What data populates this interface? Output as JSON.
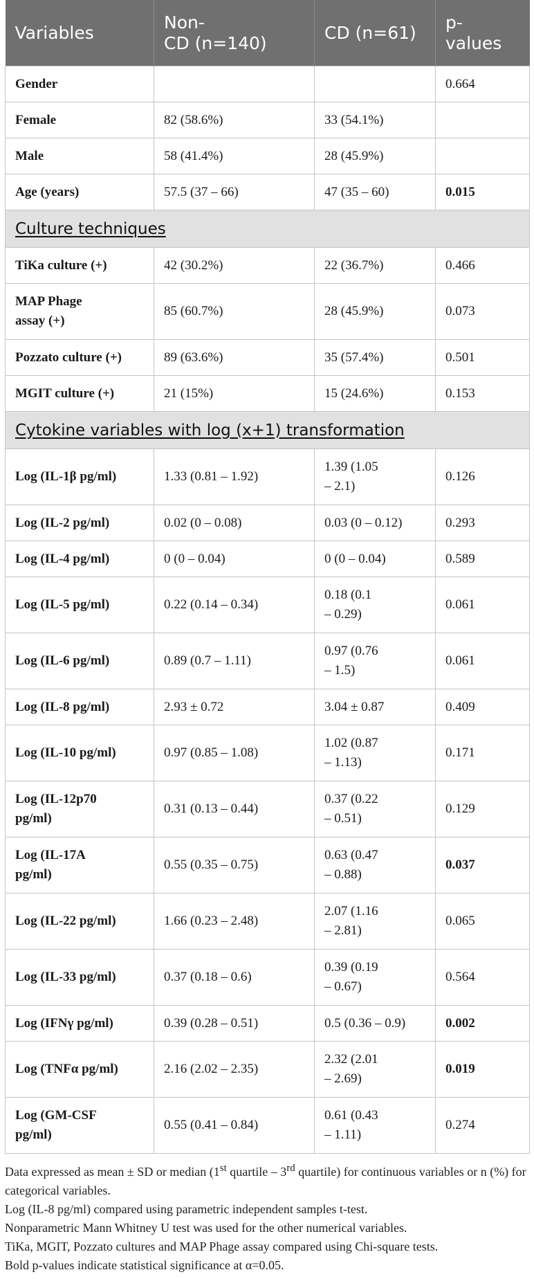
{
  "header": {
    "col1": "Variables",
    "col2": "Non-\nCD (n=140)",
    "col3": "CD (n=61)",
    "col4": "p-\nvalues"
  },
  "sections": [
    {
      "title": "",
      "rows": [
        {
          "variable": "Gender",
          "noncd": "",
          "cd": "",
          "p": "0.664",
          "sig": false,
          "h": "h52"
        },
        {
          "variable": "Female",
          "noncd": "82 (58.6%)",
          "cd": "33 (54.1%)",
          "p": "",
          "sig": false,
          "h": "h52"
        },
        {
          "variable": "Male",
          "noncd": "58 (41.4%)",
          "cd": "28 (45.9%)",
          "p": "",
          "sig": false,
          "h": "h52"
        },
        {
          "variable": "Age (years)",
          "noncd": "57.5 (37 – 66)",
          "cd": "47 (35 – 60)",
          "p": "0.015",
          "sig": true,
          "h": "h52"
        }
      ]
    },
    {
      "title": "Culture techniques",
      "rows": [
        {
          "variable": "TiKa culture (+)",
          "noncd": "42 (30.2%)",
          "cd": "22 (36.7%)",
          "p": "0.466",
          "sig": false,
          "h": "h52"
        },
        {
          "variable": "MAP Phage\nassay (+)",
          "noncd": "85 (60.7%)",
          "cd": "28 (45.9%)",
          "p": "0.073",
          "sig": false,
          "h": "h81"
        },
        {
          "variable": "Pozzato culture (+)",
          "noncd": "89 (63.6%)",
          "cd": "35 (57.4%)",
          "p": "0.501",
          "sig": false,
          "h": "h52"
        },
        {
          "variable": "MGIT culture (+)",
          "noncd": "21 (15%)",
          "cd": "15 (24.6%)",
          "p": "0.153",
          "sig": false,
          "h": "h52"
        }
      ]
    },
    {
      "title": "Cytokine variables with log (x+1) transformation",
      "rows": [
        {
          "variable": "Log (IL-1β pg/ml)",
          "noncd": "1.33 (0.81 – 1.92)",
          "cd": "1.39 (1.05\n– 2.1)",
          "p": "0.126",
          "sig": false,
          "h": "h81"
        },
        {
          "variable": "Log (IL-2 pg/ml)",
          "noncd": "0.02 (0 – 0.08)",
          "cd": "0.03 (0 – 0.12)",
          "p": "0.293",
          "sig": false,
          "h": "h52"
        },
        {
          "variable": "Log (IL-4 pg/ml)",
          "noncd": "0 (0 – 0.04)",
          "cd": "0 (0 – 0.04)",
          "p": "0.589",
          "sig": false,
          "h": "h52"
        },
        {
          "variable": "Log (IL-5 pg/ml)",
          "noncd": "0.22 (0.14 – 0.34)",
          "cd": "0.18 (0.1\n– 0.29)",
          "p": "0.061",
          "sig": false,
          "h": "h81"
        },
        {
          "variable": "Log (IL-6 pg/ml)",
          "noncd": "0.89 (0.7 – 1.11)",
          "cd": "0.97 (0.76\n– 1.5)",
          "p": "0.061",
          "sig": false,
          "h": "h81"
        },
        {
          "variable": "Log (IL-8 pg/ml)",
          "noncd": "2.93 ± 0.72",
          "cd": "3.04 ± 0.87",
          "p": "0.409",
          "sig": false,
          "h": "h52"
        },
        {
          "variable": "Log (IL-10 pg/ml)",
          "noncd": "0.97 (0.85 – 1.08)",
          "cd": "1.02 (0.87\n– 1.13)",
          "p": "0.171",
          "sig": false,
          "h": "h81"
        },
        {
          "variable": "Log (IL-12p70\npg/ml)",
          "noncd": "0.31 (0.13 – 0.44)",
          "cd": "0.37 (0.22\n– 0.51)",
          "p": "0.129",
          "sig": false,
          "h": "h81"
        },
        {
          "variable": "Log (IL-17A\npg/ml)",
          "noncd": "0.55 (0.35 – 0.75)",
          "cd": "0.63 (0.47\n– 0.88)",
          "p": "0.037",
          "sig": true,
          "h": "h81"
        },
        {
          "variable": "Log (IL-22 pg/ml)",
          "noncd": "1.66 (0.23 – 2.48)",
          "cd": "2.07 (1.16\n– 2.81)",
          "p": "0.065",
          "sig": false,
          "h": "h81"
        },
        {
          "variable": "Log (IL-33 pg/ml)",
          "noncd": "0.37 (0.18 – 0.6)",
          "cd": "0.39 (0.19\n– 0.67)",
          "p": "0.564",
          "sig": false,
          "h": "h81"
        },
        {
          "variable": "Log (IFNγ pg/ml)",
          "noncd": "0.39 (0.28 – 0.51)",
          "cd": "0.5 (0.36 – 0.9)",
          "p": "0.002",
          "sig": true,
          "h": "h52"
        },
        {
          "variable": "Log (TNFα pg/ml)",
          "noncd": "2.16 (2.02 – 2.35)",
          "cd": "2.32 (2.01\n– 2.69)",
          "p": "0.019",
          "sig": true,
          "h": "h81"
        },
        {
          "variable": "Log (GM-CSF\npg/ml)",
          "noncd": "0.55 (0.41 – 0.84)",
          "cd": "0.61 (0.43\n– 1.11)",
          "p": "0.274",
          "sig": false,
          "h": "h81"
        }
      ]
    }
  ],
  "notes": [
    "Data expressed as mean ± SD or median (1st quartile – 3rd quartile) for continuous variables or n (%) for categorical variables.",
    "Log (IL-8 pg/ml) compared using parametric independent samples t-test.",
    "Nonparametric Mann Whitney U test was used for the other numerical variables.",
    "TiKa, MGIT, Pozzato cultures and MAP Phage assay compared using Chi-square tests.",
    "Bold p-values indicate statistical significance at α=0.05."
  ]
}
